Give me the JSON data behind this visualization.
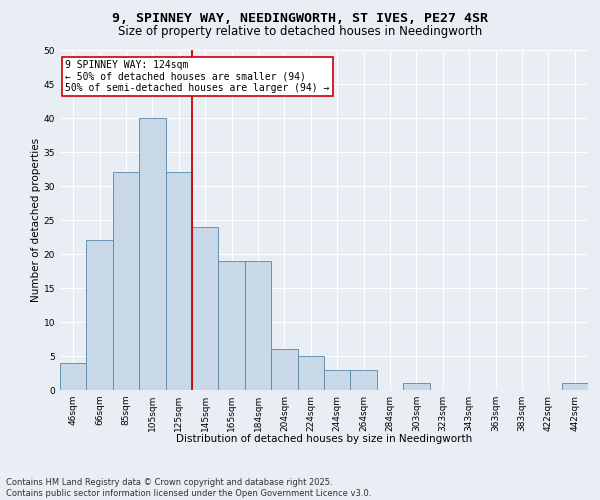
{
  "title_line1": "9, SPINNEY WAY, NEEDINGWORTH, ST IVES, PE27 4SR",
  "title_line2": "Size of property relative to detached houses in Needingworth",
  "xlabel": "Distribution of detached houses by size in Needingworth",
  "ylabel": "Number of detached properties",
  "bar_values": [
    4,
    22,
    32,
    40,
    32,
    24,
    19,
    19,
    6,
    5,
    3,
    3,
    0,
    1,
    0,
    0,
    0,
    0,
    0,
    1
  ],
  "bin_labels": [
    "46sqm",
    "66sqm",
    "85sqm",
    "105sqm",
    "125sqm",
    "145sqm",
    "165sqm",
    "184sqm",
    "204sqm",
    "224sqm",
    "244sqm",
    "264sqm",
    "284sqm",
    "303sqm",
    "323sqm",
    "343sqm",
    "363sqm",
    "383sqm",
    "422sqm",
    "442sqm"
  ],
  "bar_color": "#c8d8e8",
  "bar_edge_color": "#5588aa",
  "background_color": "#e8eef4",
  "grid_color": "#ffffff",
  "vline_color": "#cc0000",
  "vline_x_index": 4.5,
  "annotation_text": "9 SPINNEY WAY: 124sqm\n← 50% of detached houses are smaller (94)\n50% of semi-detached houses are larger (94) →",
  "annotation_box_color": "#ffffff",
  "annotation_box_edge": "#cc0000",
  "ylim": [
    0,
    50
  ],
  "yticks": [
    0,
    5,
    10,
    15,
    20,
    25,
    30,
    35,
    40,
    45,
    50
  ],
  "footer_line1": "Contains HM Land Registry data © Crown copyright and database right 2025.",
  "footer_line2": "Contains public sector information licensed under the Open Government Licence v3.0.",
  "title_fontsize": 9.5,
  "subtitle_fontsize": 8.5,
  "axis_label_fontsize": 7.5,
  "tick_fontsize": 6.5,
  "annotation_fontsize": 7,
  "footer_fontsize": 6
}
